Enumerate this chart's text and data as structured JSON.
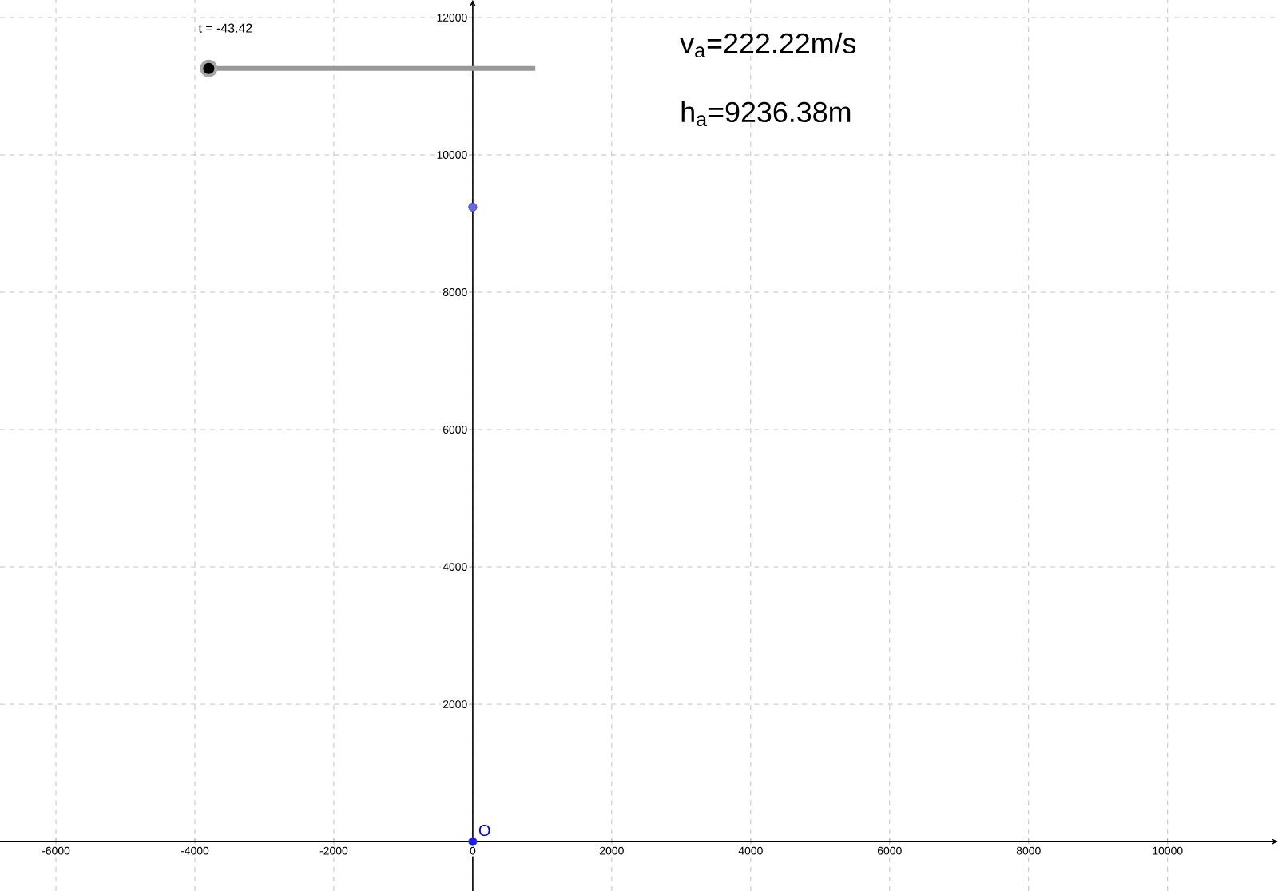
{
  "chart_data": {
    "type": "scatter",
    "series": [
      {
        "x": [
          0
        ],
        "values": [
          9240
        ],
        "color": "#6666ff"
      },
      {
        "x": [
          0
        ],
        "values": [
          0
        ],
        "color": "#1a1aff"
      }
    ],
    "xlim": [
      -6805,
      11590
    ],
    "ylim": [
      -720,
      12256
    ],
    "xticks": [
      -6000,
      -4000,
      -2000,
      0,
      2000,
      4000,
      6000,
      8000,
      10000
    ],
    "yticks": [
      2000,
      4000,
      6000,
      8000,
      10000,
      12000
    ],
    "grid": true,
    "annotations": [
      "t = -43.42",
      "v$_{a}$=222.22m/s",
      "h$_{a}$=9236.38m",
      {
        "text": "O",
        "x": 0,
        "y": 0
      }
    ]
  }
}
